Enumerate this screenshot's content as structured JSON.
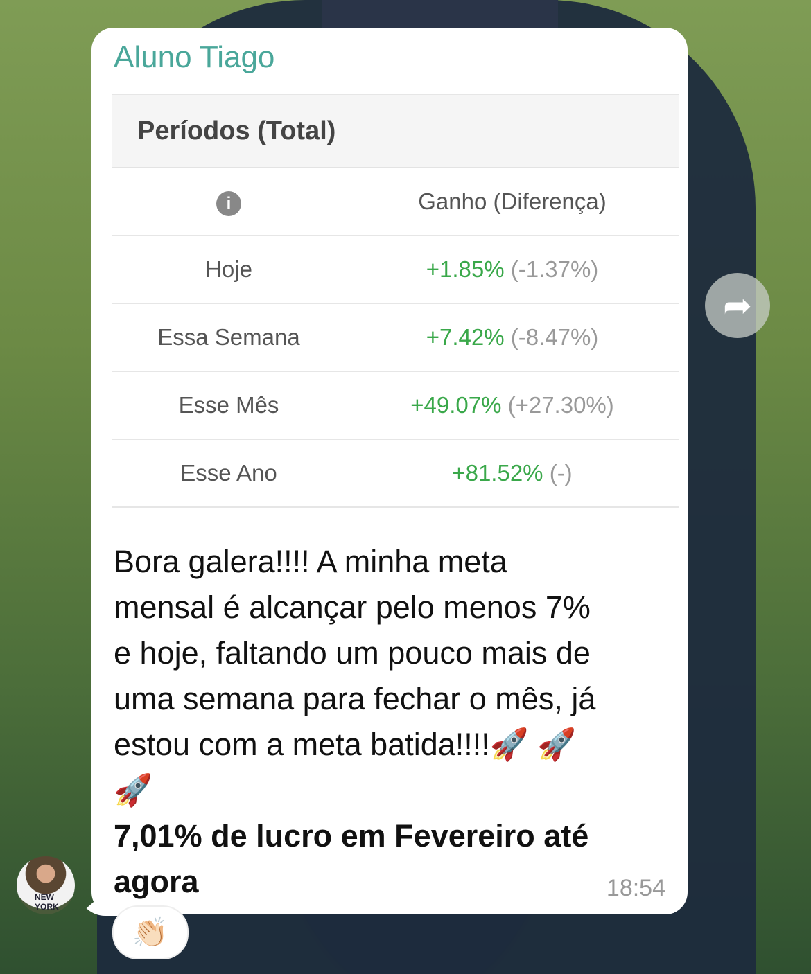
{
  "message": {
    "sender": "Aluno Tiago",
    "table": {
      "title": "Períodos (Total)",
      "info_icon": "info-icon",
      "column_header": "Ganho (Diferença)",
      "rows": [
        {
          "period": "Hoje",
          "gain": "+1.85%",
          "diff": "(-1.37%)"
        },
        {
          "period": "Essa Semana",
          "gain": "+7.42%",
          "diff": "(-8.47%)"
        },
        {
          "period": "Esse Mês",
          "gain": "+49.07%",
          "diff": "(+27.30%)"
        },
        {
          "period": "Esse Ano",
          "gain": "+81.52%",
          "diff": "(-)"
        }
      ],
      "gain_color": "#3aa84a"
    },
    "text_lines": [
      "Bora galera!!!! A minha meta",
      "mensal é alcançar pelo menos 7%",
      "e hoje, faltando um pouco mais de",
      "uma semana para fechar o mês, já",
      "estou com a meta batida!!!!🚀 🚀",
      "🚀"
    ],
    "bold_text": "7,01% de lucro em Fevereiro até agora",
    "time": "18:54",
    "reaction": "👏🏻",
    "avatar_text": "NEW YORK"
  },
  "forward_icon": "forward-arrow-icon",
  "accent_color": "#4aa79a"
}
